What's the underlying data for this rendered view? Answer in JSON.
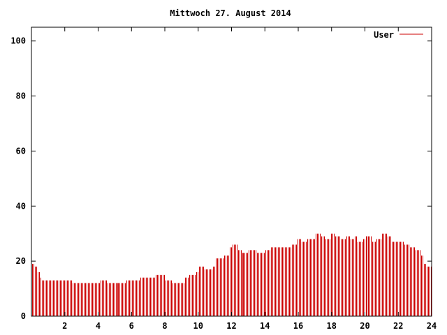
{
  "chart_data": {
    "type": "bar",
    "title": "Mittwoch 27. August 2014",
    "xlabel": "",
    "ylabel": "",
    "xlim": [
      0,
      24
    ],
    "ylim": [
      0,
      105
    ],
    "x_ticks": [
      2,
      4,
      6,
      8,
      10,
      12,
      14,
      16,
      18,
      20,
      22,
      24
    ],
    "y_ticks": [
      0,
      20,
      40,
      60,
      80,
      100
    ],
    "grid": false,
    "legend_position": "top-right",
    "color": "#cc0000",
    "series": [
      {
        "name": "User",
        "keypoints": [
          [
            0.05,
            19
          ],
          [
            0.2,
            18
          ],
          [
            0.35,
            16
          ],
          [
            0.5,
            14
          ],
          [
            0.6,
            13
          ],
          [
            2.2,
            13
          ],
          [
            2.4,
            12
          ],
          [
            4.0,
            12
          ],
          [
            4.1,
            13
          ],
          [
            4.4,
            13
          ],
          [
            4.5,
            12
          ],
          [
            5.6,
            12
          ],
          [
            5.7,
            13
          ],
          [
            6.3,
            13
          ],
          [
            6.5,
            14
          ],
          [
            7.2,
            14
          ],
          [
            7.4,
            15
          ],
          [
            7.9,
            15
          ],
          [
            8.0,
            13
          ],
          [
            8.3,
            13
          ],
          [
            8.4,
            12
          ],
          [
            9.1,
            12
          ],
          [
            9.2,
            14
          ],
          [
            9.4,
            15
          ],
          [
            9.8,
            16
          ],
          [
            10.0,
            18
          ],
          [
            10.3,
            17
          ],
          [
            10.8,
            18
          ],
          [
            11.0,
            21
          ],
          [
            11.5,
            22
          ],
          [
            11.8,
            25
          ],
          [
            12.0,
            26
          ],
          [
            12.3,
            24
          ],
          [
            12.6,
            23
          ],
          [
            13.0,
            24
          ],
          [
            13.5,
            23
          ],
          [
            14.0,
            24
          ],
          [
            14.3,
            25
          ],
          [
            15.3,
            25
          ],
          [
            15.6,
            26
          ],
          [
            15.9,
            28
          ],
          [
            16.2,
            27
          ],
          [
            16.5,
            28
          ],
          [
            16.9,
            28
          ],
          [
            17.0,
            30
          ],
          [
            17.3,
            29
          ],
          [
            17.6,
            28
          ],
          [
            17.9,
            30
          ],
          [
            18.2,
            29
          ],
          [
            18.5,
            28
          ],
          [
            18.8,
            29
          ],
          [
            19.1,
            28
          ],
          [
            19.3,
            29
          ],
          [
            19.5,
            27
          ],
          [
            19.8,
            28
          ],
          [
            20.0,
            29
          ],
          [
            20.4,
            27
          ],
          [
            20.7,
            28
          ],
          [
            21.0,
            30
          ],
          [
            21.3,
            29
          ],
          [
            21.6,
            27
          ],
          [
            22.0,
            27
          ],
          [
            22.3,
            26
          ],
          [
            22.7,
            25
          ],
          [
            23.0,
            24
          ],
          [
            23.3,
            22
          ],
          [
            23.5,
            19
          ],
          [
            23.7,
            18
          ],
          [
            24.0,
            17
          ]
        ]
      }
    ],
    "bar_spacing_hours": 0.0833
  }
}
